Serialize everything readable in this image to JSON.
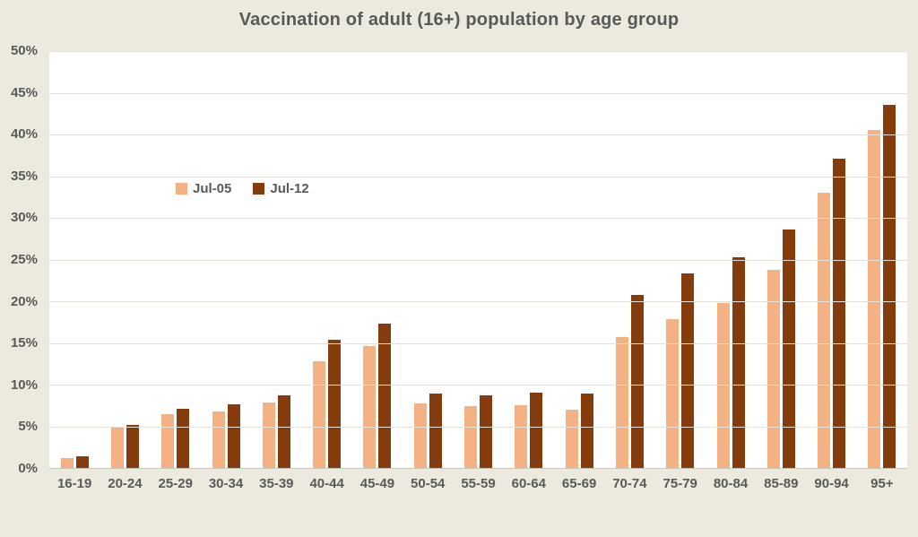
{
  "chart_data": {
    "type": "bar",
    "title": "Vaccination of adult (16+) population by age group",
    "categories": [
      "16-19",
      "20-24",
      "25-29",
      "30-34",
      "35-39",
      "40-44",
      "45-49",
      "50-54",
      "55-59",
      "60-64",
      "65-69",
      "70-74",
      "75-79",
      "80-84",
      "85-89",
      "90-94",
      "95+"
    ],
    "series": [
      {
        "name": "Jul-05",
        "color": "#f4b183",
        "values": [
          1.2,
          4.8,
          6.5,
          6.8,
          7.8,
          12.8,
          14.6,
          7.7,
          7.4,
          7.5,
          7.0,
          15.7,
          17.9,
          19.8,
          23.8,
          33.0,
          40.5
        ]
      },
      {
        "name": "Jul-12",
        "color": "#843c0c",
        "values": [
          1.4,
          5.2,
          7.1,
          7.6,
          8.7,
          15.4,
          17.3,
          8.9,
          8.7,
          9.0,
          8.9,
          20.8,
          23.3,
          25.3,
          28.6,
          37.1,
          43.6
        ]
      }
    ],
    "xlabel": "",
    "ylabel": "",
    "ylim": [
      0,
      50
    ],
    "ytick_step": 5,
    "ytick_suffix": "%",
    "grid": true,
    "legend_position": "inside-upper-left"
  },
  "colors": {
    "background": "#eceade",
    "plot_background": "#ffffff",
    "gridline": "#e2e1da",
    "axis_line": "#c8c7bc",
    "text": "#595959"
  }
}
